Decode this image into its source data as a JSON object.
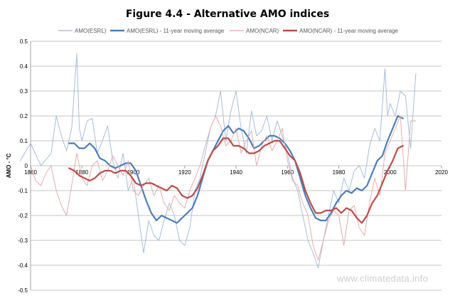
{
  "chart_data": {
    "type": "line",
    "title": "Figure 4.4 - Alternative AMO indices",
    "xlabel": "",
    "ylabel": "AMO - °C",
    "xlim": [
      1860,
      2020
    ],
    "ylim": [
      -0.5,
      0.5
    ],
    "x_ticks": [
      1860,
      1880,
      1900,
      1920,
      1940,
      1960,
      1980,
      2000,
      2020
    ],
    "y_ticks": [
      -0.5,
      -0.4,
      -0.3,
      -0.2,
      -0.1,
      0,
      0.1,
      0.2,
      0.3,
      0.4,
      0.5
    ],
    "y_tick_labels": [
      "-0.5",
      "-0.4",
      "-0.3",
      "-0.2",
      "-0.1",
      "0",
      "0.1",
      "0.2",
      "0.3",
      "0.4",
      "0.5"
    ],
    "grid": true,
    "legend_position": "top",
    "watermark": "www.climatedata.info",
    "series": [
      {
        "name": "AMO(ESRL)",
        "color": "#9db8d9",
        "width": 0.9,
        "x": [
          1856,
          1860,
          1864,
          1868,
          1870,
          1872,
          1874,
          1876,
          1878,
          1879,
          1880,
          1882,
          1884,
          1886,
          1888,
          1890,
          1892,
          1894,
          1896,
          1898,
          1900,
          1902,
          1904,
          1906,
          1908,
          1910,
          1912,
          1914,
          1916,
          1918,
          1920,
          1922,
          1924,
          1926,
          1928,
          1930,
          1932,
          1934,
          1936,
          1938,
          1940,
          1942,
          1944,
          1946,
          1948,
          1950,
          1952,
          1954,
          1956,
          1958,
          1960,
          1962,
          1964,
          1966,
          1968,
          1970,
          1972,
          1974,
          1976,
          1978,
          1980,
          1982,
          1984,
          1986,
          1988,
          1990,
          1992,
          1994,
          1996,
          1998,
          1999,
          2000,
          2002,
          2004,
          2006,
          2008,
          2010
        ],
        "y": [
          0.02,
          0.09,
          0.0,
          0.05,
          0.2,
          0.12,
          0.06,
          0.15,
          0.45,
          0.15,
          0.1,
          0.18,
          0.19,
          0.05,
          0.1,
          0.16,
          0.02,
          -0.05,
          0.05,
          -0.1,
          -0.05,
          -0.2,
          -0.35,
          -0.22,
          -0.28,
          -0.3,
          -0.22,
          -0.15,
          -0.2,
          -0.3,
          -0.32,
          -0.25,
          -0.1,
          -0.05,
          0.05,
          0.15,
          0.2,
          0.3,
          0.1,
          0.22,
          0.3,
          0.15,
          0.05,
          0.22,
          0.12,
          0.14,
          0.2,
          0.1,
          0.18,
          0.12,
          0.05,
          -0.05,
          -0.1,
          -0.2,
          -0.3,
          -0.35,
          -0.41,
          -0.3,
          -0.2,
          -0.1,
          -0.15,
          -0.05,
          -0.1,
          -0.02,
          0.0,
          -0.05,
          0.08,
          0.15,
          0.1,
          0.39,
          0.2,
          0.25,
          0.2,
          0.3,
          0.28,
          0.07,
          0.37
        ]
      },
      {
        "name": "AMO(ESRL) - 11-year moving average",
        "color": "#4a7ebb",
        "width": 2.2,
        "x": [
          1875,
          1877,
          1879,
          1881,
          1883,
          1885,
          1887,
          1889,
          1891,
          1893,
          1895,
          1897,
          1899,
          1901,
          1903,
          1905,
          1907,
          1909,
          1911,
          1913,
          1915,
          1917,
          1919,
          1921,
          1923,
          1925,
          1927,
          1929,
          1931,
          1933,
          1935,
          1937,
          1939,
          1941,
          1943,
          1945,
          1947,
          1949,
          1951,
          1953,
          1955,
          1957,
          1959,
          1961,
          1963,
          1965,
          1967,
          1969,
          1971,
          1973,
          1975,
          1977,
          1979,
          1981,
          1983,
          1985,
          1987,
          1989,
          1991,
          1993,
          1995,
          1997,
          1999,
          2001,
          2003,
          2005
        ],
        "y": [
          0.09,
          0.09,
          0.07,
          0.07,
          0.09,
          0.07,
          0.03,
          0.02,
          0.0,
          -0.01,
          0.0,
          0.01,
          0.01,
          -0.02,
          -0.08,
          -0.14,
          -0.19,
          -0.22,
          -0.2,
          -0.21,
          -0.22,
          -0.23,
          -0.21,
          -0.19,
          -0.17,
          -0.12,
          -0.05,
          0.02,
          0.06,
          0.1,
          0.14,
          0.16,
          0.13,
          0.15,
          0.14,
          0.11,
          0.07,
          0.08,
          0.1,
          0.12,
          0.12,
          0.11,
          0.09,
          0.06,
          0.02,
          -0.05,
          -0.12,
          -0.17,
          -0.21,
          -0.22,
          -0.22,
          -0.19,
          -0.15,
          -0.12,
          -0.1,
          -0.11,
          -0.09,
          -0.1,
          -0.08,
          -0.03,
          0.02,
          0.04,
          0.1,
          0.15,
          0.2,
          0.19
        ]
      },
      {
        "name": "AMO(NCAR)",
        "color": "#e3a6a6",
        "width": 0.9,
        "x": [
          1860,
          1862,
          1864,
          1866,
          1868,
          1870,
          1872,
          1874,
          1876,
          1878,
          1880,
          1882,
          1884,
          1886,
          1888,
          1890,
          1892,
          1894,
          1896,
          1898,
          1900,
          1902,
          1904,
          1906,
          1908,
          1910,
          1912,
          1914,
          1916,
          1918,
          1920,
          1922,
          1924,
          1926,
          1928,
          1930,
          1932,
          1934,
          1936,
          1938,
          1940,
          1942,
          1944,
          1946,
          1948,
          1950,
          1952,
          1954,
          1956,
          1958,
          1960,
          1962,
          1964,
          1966,
          1968,
          1970,
          1972,
          1974,
          1976,
          1978,
          1980,
          1982,
          1984,
          1986,
          1988,
          1990,
          1992,
          1994,
          1996,
          1998,
          2000,
          2002,
          2004,
          2006,
          2008,
          2010
        ],
        "y": [
          0.0,
          -0.06,
          -0.08,
          -0.03,
          0.0,
          -0.1,
          -0.16,
          -0.2,
          -0.08,
          0.05,
          -0.05,
          -0.08,
          0.0,
          0.02,
          -0.06,
          -0.02,
          0.04,
          0.0,
          -0.04,
          0.02,
          -0.1,
          -0.12,
          -0.08,
          -0.05,
          -0.12,
          -0.08,
          -0.15,
          -0.18,
          -0.12,
          -0.15,
          -0.17,
          -0.1,
          -0.05,
          0.0,
          0.08,
          0.15,
          0.2,
          0.16,
          0.08,
          0.1,
          0.15,
          0.05,
          0.1,
          0.14,
          0.0,
          0.08,
          0.12,
          0.06,
          0.1,
          0.15,
          0.02,
          -0.06,
          -0.08,
          -0.15,
          -0.2,
          -0.32,
          -0.38,
          -0.3,
          -0.22,
          -0.18,
          -0.2,
          -0.32,
          -0.18,
          -0.16,
          -0.25,
          -0.28,
          -0.15,
          -0.05,
          -0.12,
          0.05,
          0.1,
          0.15,
          0.2,
          -0.1,
          0.18,
          0.18
        ]
      },
      {
        "name": "AMO(NCAR) - 11-year moving average",
        "color": "#be4b48",
        "width": 2.2,
        "x": [
          1875,
          1877,
          1879,
          1881,
          1883,
          1885,
          1887,
          1889,
          1891,
          1893,
          1895,
          1897,
          1899,
          1901,
          1903,
          1905,
          1907,
          1909,
          1911,
          1913,
          1915,
          1917,
          1919,
          1921,
          1923,
          1925,
          1927,
          1929,
          1931,
          1933,
          1935,
          1937,
          1939,
          1941,
          1943,
          1945,
          1947,
          1949,
          1951,
          1953,
          1955,
          1957,
          1959,
          1961,
          1963,
          1965,
          1967,
          1969,
          1971,
          1973,
          1975,
          1977,
          1979,
          1981,
          1983,
          1985,
          1987,
          1989,
          1991,
          1993,
          1995,
          1997,
          1999,
          2001,
          2003,
          2005
        ],
        "y": [
          -0.01,
          -0.02,
          -0.04,
          -0.05,
          -0.06,
          -0.05,
          -0.03,
          -0.02,
          -0.02,
          -0.03,
          -0.02,
          -0.02,
          -0.04,
          -0.07,
          -0.08,
          -0.07,
          -0.07,
          -0.08,
          -0.09,
          -0.1,
          -0.08,
          -0.09,
          -0.12,
          -0.13,
          -0.12,
          -0.09,
          -0.04,
          0.02,
          0.06,
          0.08,
          0.11,
          0.11,
          0.08,
          0.08,
          0.07,
          0.05,
          0.05,
          0.06,
          0.08,
          0.09,
          0.1,
          0.1,
          0.07,
          0.04,
          0.02,
          -0.03,
          -0.1,
          -0.15,
          -0.19,
          -0.19,
          -0.18,
          -0.18,
          -0.17,
          -0.19,
          -0.17,
          -0.18,
          -0.21,
          -0.23,
          -0.2,
          -0.15,
          -0.12,
          -0.07,
          -0.02,
          0.02,
          0.07,
          0.08
        ]
      }
    ]
  }
}
